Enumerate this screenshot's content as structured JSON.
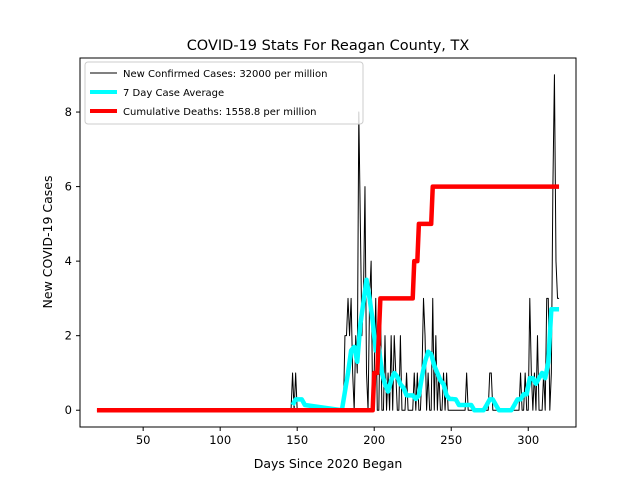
{
  "chart_data": {
    "type": "line",
    "title": "COVID-19 Stats For Reagan County, TX",
    "xlabel": "Days Since 2020 Began",
    "ylabel": "New COVID-19 Cases",
    "xlim": [
      9,
      331
    ],
    "ylim": [
      -0.45,
      9.45
    ],
    "xticks": [
      50,
      100,
      150,
      200,
      250,
      300
    ],
    "yticks": [
      0,
      2,
      4,
      6,
      8
    ],
    "grid": false,
    "legend_position": "top-left",
    "series": [
      {
        "name": "New Confirmed Cases: 32000 per million",
        "color": "#000000",
        "x": [
          20,
          145,
          146,
          147,
          148,
          149,
          150,
          151,
          152,
          180,
          181,
          182,
          183,
          184,
          185,
          186,
          187,
          188,
          189,
          190,
          191,
          192,
          193,
          194,
          195,
          196,
          197,
          198,
          199,
          200,
          201,
          202,
          203,
          204,
          205,
          206,
          207,
          208,
          209,
          210,
          211,
          212,
          213,
          214,
          215,
          216,
          217,
          218,
          219,
          220,
          221,
          222,
          223,
          224,
          225,
          226,
          227,
          228,
          229,
          230,
          231,
          232,
          233,
          234,
          235,
          236,
          237,
          238,
          239,
          240,
          241,
          242,
          243,
          244,
          245,
          246,
          247,
          248,
          249,
          250,
          251,
          252,
          253,
          254,
          255,
          256,
          257,
          258,
          259,
          260,
          261,
          262,
          263,
          264,
          265,
          266,
          267,
          268,
          269,
          270,
          271,
          272,
          273,
          274,
          275,
          276,
          277,
          278,
          279,
          280,
          281,
          282,
          283,
          284,
          285,
          286,
          287,
          288,
          289,
          290,
          291,
          292,
          293,
          294,
          295,
          296,
          297,
          298,
          299,
          300,
          301,
          302,
          303,
          304,
          305,
          306,
          307,
          308,
          309,
          310,
          311,
          312,
          313,
          314,
          315,
          316,
          317,
          318,
          319,
          320
        ],
        "values": [
          0,
          0,
          0,
          1,
          0,
          1,
          0,
          0,
          0,
          0,
          2,
          2,
          3,
          2,
          3,
          1,
          0,
          2,
          1,
          8,
          5,
          2,
          3,
          6,
          1,
          0,
          3,
          4,
          0,
          1,
          3,
          0,
          0,
          3,
          0,
          0,
          2,
          0,
          1,
          0,
          2,
          0,
          2,
          1,
          0,
          0,
          2,
          0,
          0,
          0,
          1,
          0,
          0,
          0,
          0,
          1,
          0,
          1,
          0,
          0,
          1,
          3,
          2,
          0,
          1,
          0,
          0,
          3,
          0,
          2,
          0,
          1,
          0,
          0,
          1,
          0,
          1,
          0,
          0,
          0,
          0,
          0,
          0,
          0,
          0,
          0,
          0,
          0,
          0,
          1,
          0,
          0,
          0,
          0,
          0,
          0,
          0,
          0,
          0,
          0,
          0,
          0,
          0,
          0,
          1,
          1,
          0,
          0,
          0,
          0,
          0,
          0,
          0,
          0,
          0,
          0,
          0,
          0,
          0,
          0,
          0,
          0,
          0,
          0,
          1,
          0,
          0,
          1,
          0,
          0,
          3,
          1,
          0,
          1,
          0,
          2,
          0,
          0,
          0,
          1,
          0,
          3,
          3,
          0,
          1,
          6,
          9,
          4,
          3,
          3
        ]
      },
      {
        "name": "7 Day Case Average",
        "color": "#00ffff",
        "x": [
          147,
          149,
          151,
          153,
          155,
          179,
          181,
          183,
          185,
          187,
          189,
          191,
          193,
          195,
          197,
          199,
          201,
          203,
          205,
          207,
          209,
          211,
          213,
          215,
          217,
          219,
          221,
          223,
          225,
          227,
          229,
          231,
          233,
          235,
          237,
          239,
          241,
          243,
          245,
          247,
          249,
          251,
          253,
          255,
          257,
          259,
          261,
          263,
          265,
          267,
          269,
          271,
          273,
          275,
          277,
          279,
          281,
          283,
          285,
          287,
          289,
          291,
          293,
          295,
          297,
          299,
          301,
          303,
          305,
          307,
          309,
          311,
          313,
          315,
          317,
          319,
          320
        ],
        "values": [
          0.14,
          0.29,
          0.29,
          0.29,
          0.14,
          0.0,
          0.5,
          1.0,
          1.6,
          1.7,
          1.3,
          2.3,
          2.9,
          3.5,
          3.0,
          2.4,
          1.6,
          1.7,
          1.0,
          0.7,
          0.5,
          0.8,
          1.0,
          0.9,
          0.7,
          0.6,
          0.4,
          0.4,
          0.4,
          0.3,
          0.4,
          0.9,
          1.3,
          1.57,
          1.5,
          1.2,
          1.0,
          0.8,
          0.7,
          0.4,
          0.3,
          0.3,
          0.29,
          0.14,
          0.14,
          0.14,
          0.14,
          0.14,
          0.0,
          0.0,
          0.0,
          0.0,
          0.14,
          0.29,
          0.29,
          0.14,
          0.0,
          0.0,
          0.0,
          0.0,
          0.0,
          0.14,
          0.29,
          0.29,
          0.43,
          0.43,
          0.86,
          0.86,
          0.71,
          0.86,
          1.0,
          0.86,
          1.29,
          2.71,
          2.71,
          2.71,
          2.71
        ]
      },
      {
        "name": "Cumulative Deaths: 1558.8 per million",
        "color": "#ff0000",
        "x": [
          20,
          199,
          200,
          201,
          202,
          203,
          204,
          225,
          226,
          227,
          228,
          229,
          236,
          237,
          238,
          239,
          320
        ],
        "values": [
          0,
          0,
          1,
          1,
          1,
          2,
          3,
          3,
          4,
          4,
          4,
          5,
          5,
          5,
          6,
          6,
          6
        ]
      }
    ]
  }
}
